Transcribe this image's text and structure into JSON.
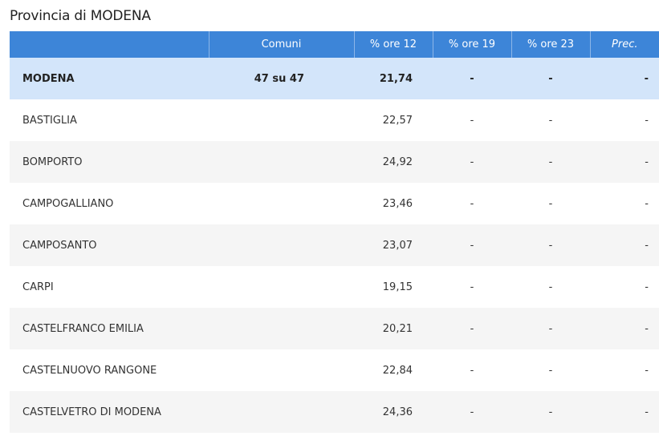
{
  "page_title": "Provincia di MODENA",
  "header": {
    "name": "",
    "comuni": "Comuni",
    "ore12": "% ore 12",
    "ore19": "% ore 19",
    "ore23": "% ore 23",
    "prec": "Prec."
  },
  "colors": {
    "header_bg": "#3d85d8",
    "total_row_bg": "#d3e5fa",
    "alt_row_bg": "#f5f5f5"
  },
  "rows": [
    {
      "name": "MODENA",
      "comuni": "47 su 47",
      "ore12": "21,74",
      "ore19": "-",
      "ore23": "-",
      "prec": "-"
    },
    {
      "name": "BASTIGLIA",
      "comuni": "",
      "ore12": "22,57",
      "ore19": "-",
      "ore23": "-",
      "prec": "-"
    },
    {
      "name": "BOMPORTO",
      "comuni": "",
      "ore12": "24,92",
      "ore19": "-",
      "ore23": "-",
      "prec": "-"
    },
    {
      "name": "CAMPOGALLIANO",
      "comuni": "",
      "ore12": "23,46",
      "ore19": "-",
      "ore23": "-",
      "prec": "-"
    },
    {
      "name": "CAMPOSANTO",
      "comuni": "",
      "ore12": "23,07",
      "ore19": "-",
      "ore23": "-",
      "prec": "-"
    },
    {
      "name": "CARPI",
      "comuni": "",
      "ore12": "19,15",
      "ore19": "-",
      "ore23": "-",
      "prec": "-"
    },
    {
      "name": "CASTELFRANCO EMILIA",
      "comuni": "",
      "ore12": "20,21",
      "ore19": "-",
      "ore23": "-",
      "prec": "-"
    },
    {
      "name": "CASTELNUOVO RANGONE",
      "comuni": "",
      "ore12": "22,84",
      "ore19": "-",
      "ore23": "-",
      "prec": "-"
    },
    {
      "name": "CASTELVETRO DI MODENA",
      "comuni": "",
      "ore12": "24,36",
      "ore19": "-",
      "ore23": "-",
      "prec": "-"
    }
  ]
}
